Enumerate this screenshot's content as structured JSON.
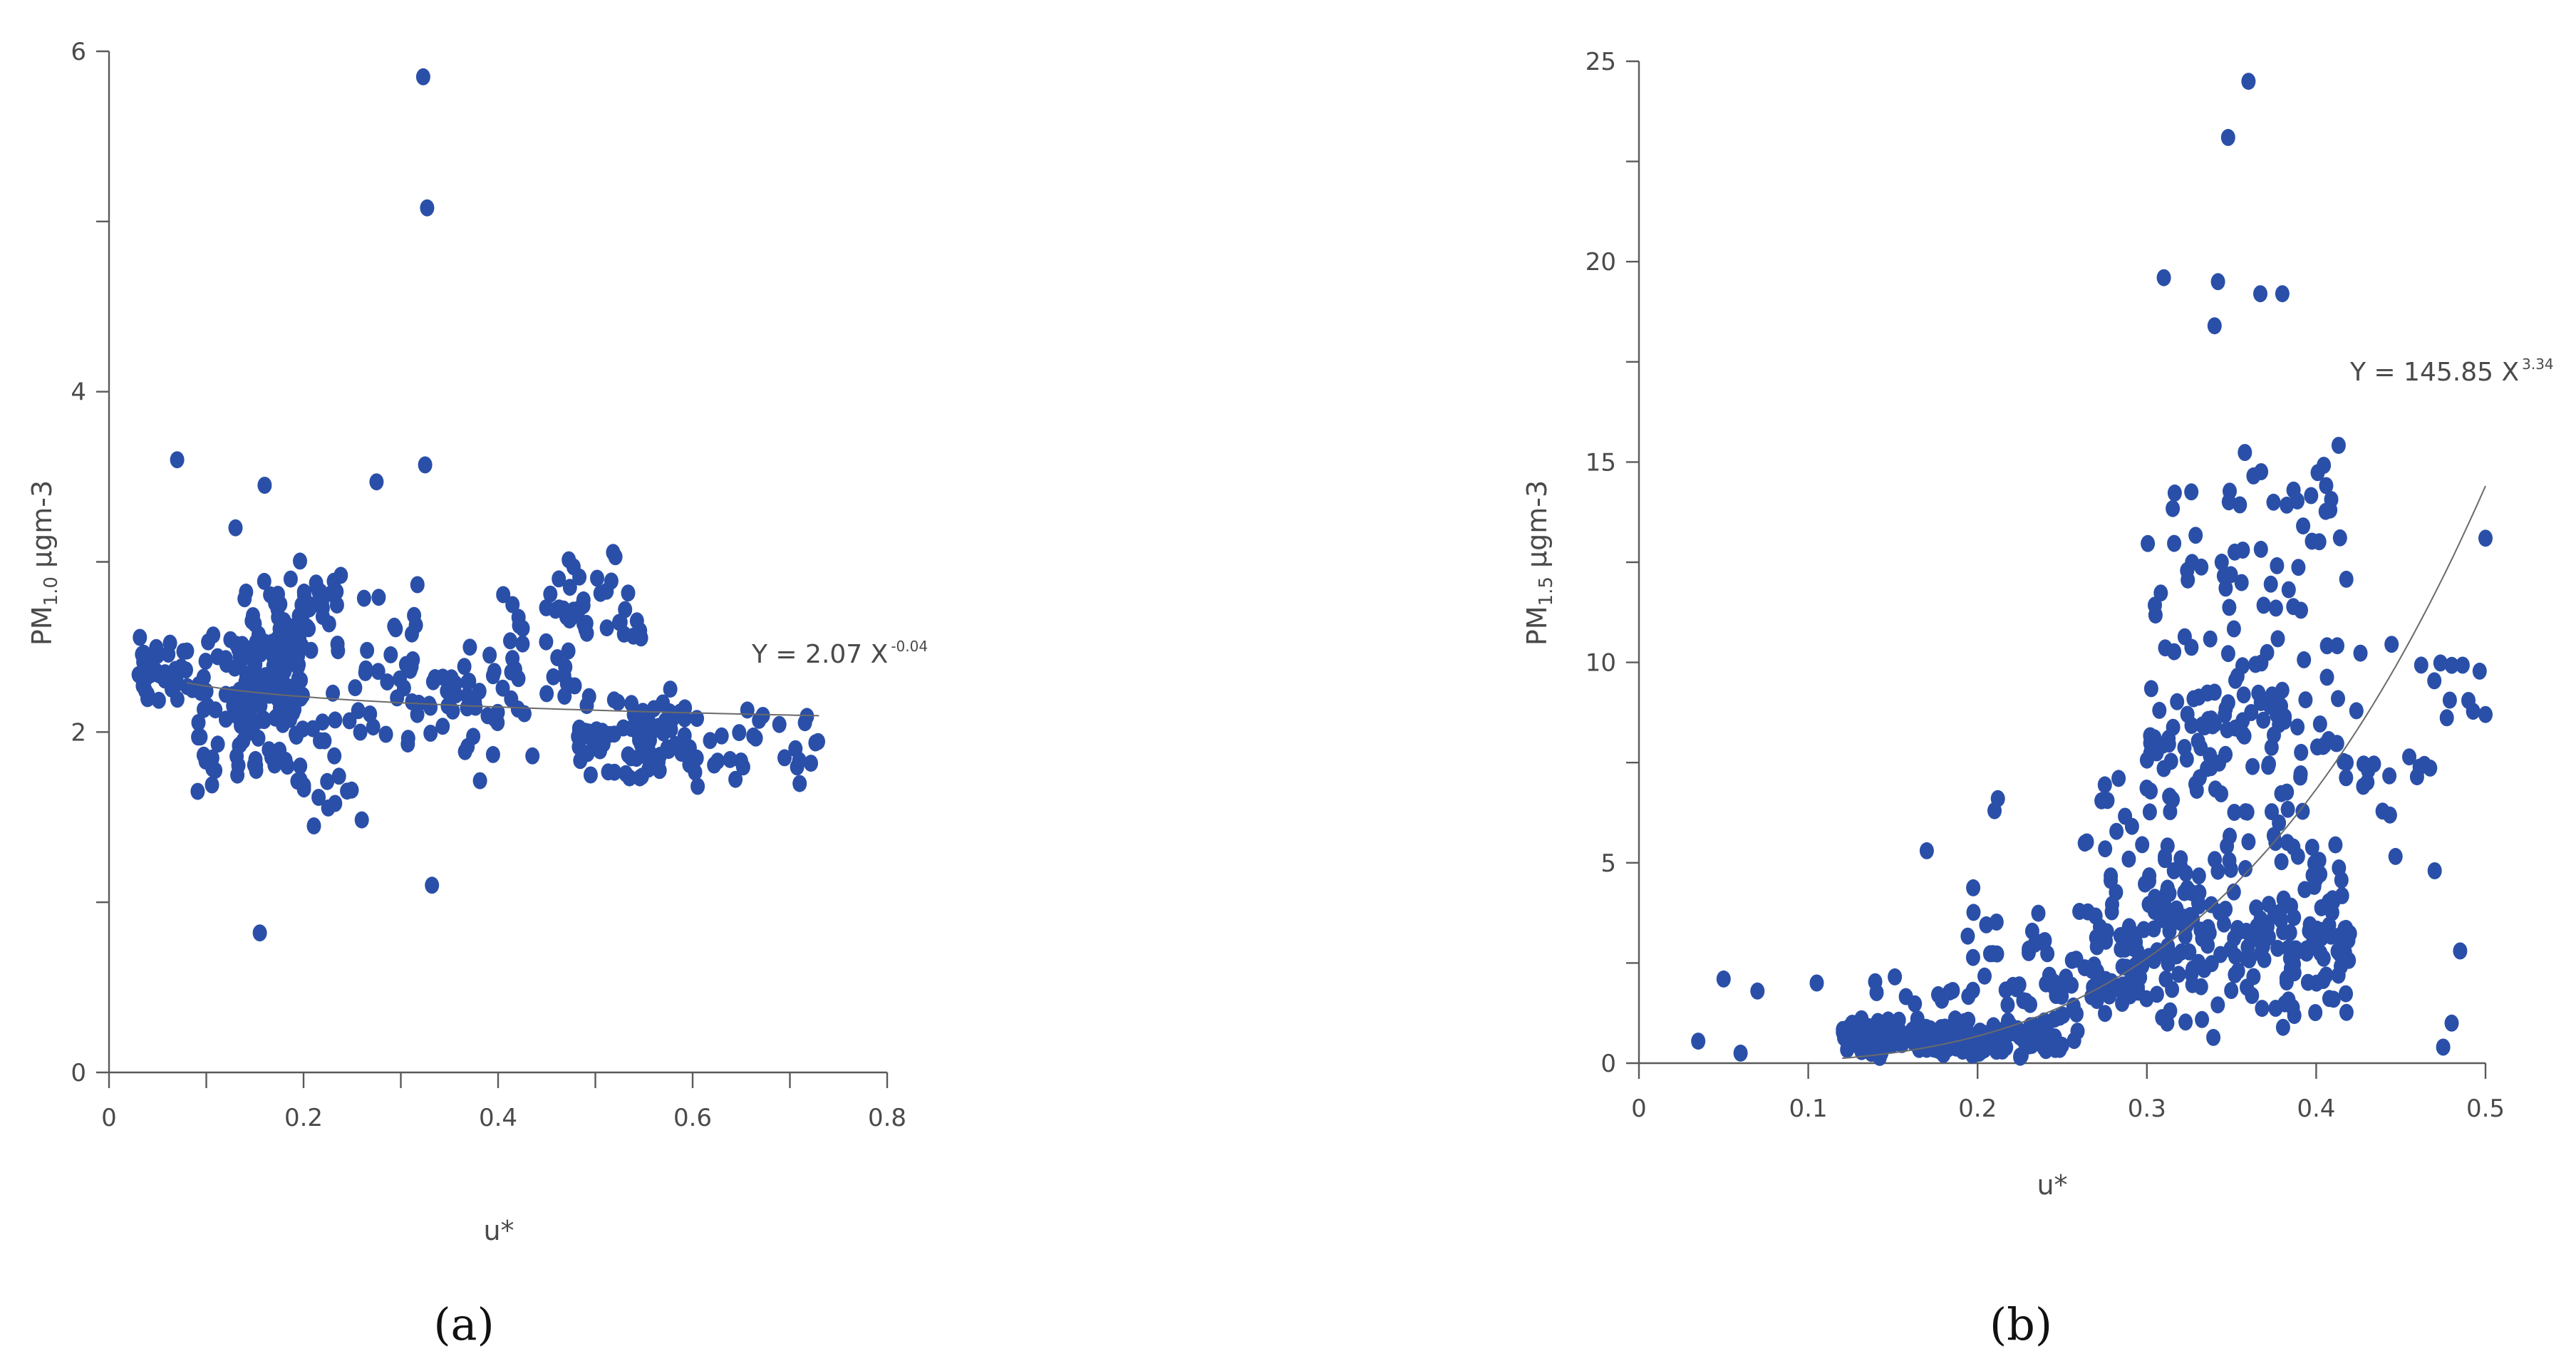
{
  "chart_data": [
    {
      "type": "scatter",
      "panel_label": "(a)",
      "xlabel": "u*",
      "ylabel": {
        "main": "PM",
        "sub": "1.0",
        "unit": " μgm-3"
      },
      "xlim": [
        0,
        0.8
      ],
      "ylim": [
        0,
        6
      ],
      "xticks": [
        0,
        0.1,
        0.2,
        0.3,
        0.4,
        0.5,
        0.6,
        0.7,
        0.8
      ],
      "xtick_labels": [
        "0",
        "",
        "0.2",
        "",
        "0.4",
        "",
        "0.6",
        "",
        "0.8"
      ],
      "yticks": [
        0,
        1,
        2,
        3,
        4,
        5,
        6
      ],
      "ytick_labels": [
        "0",
        "",
        "2",
        "",
        "4",
        "",
        "6"
      ],
      "fit": {
        "a": 2.07,
        "b": -0.04,
        "x_range": [
          0.08,
          0.73
        ],
        "label": "Y = 2.07 X",
        "label_sup": "-0.04"
      },
      "point_color": "#2a4fa8",
      "outliers": [
        [
          0.323,
          5.85
        ],
        [
          0.327,
          5.08
        ],
        [
          0.325,
          3.57
        ],
        [
          0.332,
          1.1
        ],
        [
          0.155,
          0.82
        ],
        [
          0.07,
          3.6
        ],
        [
          0.16,
          3.45
        ],
        [
          0.275,
          3.47
        ],
        [
          0.13,
          3.2
        ]
      ],
      "clusters": [
        {
          "x": [
            0.03,
            0.09
          ],
          "y": [
            2.1,
            2.6
          ],
          "n": 40
        },
        {
          "x": [
            0.09,
            0.13
          ],
          "y": [
            1.6,
            2.6
          ],
          "n": 30
        },
        {
          "x": [
            0.13,
            0.2
          ],
          "y": [
            1.6,
            2.9
          ],
          "n": 150
        },
        {
          "x": [
            0.17,
            0.24
          ],
          "y": [
            2.4,
            3.05
          ],
          "n": 40
        },
        {
          "x": [
            0.2,
            0.26
          ],
          "y": [
            1.35,
            2.4
          ],
          "n": 22
        },
        {
          "x": [
            0.26,
            0.33
          ],
          "y": [
            1.75,
            3.0
          ],
          "n": 30
        },
        {
          "x": [
            0.33,
            0.4
          ],
          "y": [
            1.7,
            2.6
          ],
          "n": 35
        },
        {
          "x": [
            0.4,
            0.48
          ],
          "y": [
            1.8,
            2.95
          ],
          "n": 30
        },
        {
          "x": [
            0.46,
            0.55
          ],
          "y": [
            2.4,
            3.1
          ],
          "n": 35
        },
        {
          "x": [
            0.48,
            0.6
          ],
          "y": [
            1.65,
            2.3
          ],
          "n": 90
        },
        {
          "x": [
            0.6,
            0.73
          ],
          "y": [
            1.6,
            2.25
          ],
          "n": 30
        }
      ]
    },
    {
      "type": "scatter",
      "panel_label": "(b)",
      "xlabel": "u*",
      "ylabel": {
        "main": "PM",
        "sub": "1.5",
        "unit": " μgm-3"
      },
      "xlim": [
        0,
        0.5
      ],
      "ylim": [
        0,
        25
      ],
      "xticks": [
        0,
        0.1,
        0.2,
        0.3,
        0.4,
        0.5
      ],
      "xtick_labels": [
        "0",
        "0.1",
        "0.2",
        "0.3",
        "0.4",
        "0.5"
      ],
      "yticks": [
        0,
        2.5,
        5,
        7.5,
        10,
        12.5,
        15,
        17.5,
        20,
        22.5,
        25
      ],
      "ytick_labels": [
        "0",
        "",
        "5",
        "",
        "10",
        "",
        "15",
        "",
        "20",
        "",
        "25"
      ],
      "fit": {
        "a": 145.85,
        "b": 3.34,
        "x_range": [
          0.12,
          0.5
        ],
        "label": "Y = 145.85 X",
        "label_sup": "3.34"
      },
      "point_color": "#2a4fa8",
      "outliers": [
        [
          0.035,
          0.55
        ],
        [
          0.05,
          2.1
        ],
        [
          0.06,
          0.25
        ],
        [
          0.07,
          1.8
        ],
        [
          0.105,
          2.0
        ],
        [
          0.17,
          5.3
        ],
        [
          0.21,
          6.3
        ],
        [
          0.212,
          6.6
        ],
        [
          0.31,
          19.6
        ],
        [
          0.34,
          18.4
        ],
        [
          0.342,
          19.5
        ],
        [
          0.348,
          23.1
        ],
        [
          0.36,
          24.5
        ],
        [
          0.367,
          19.2
        ],
        [
          0.38,
          19.2
        ],
        [
          0.5,
          8.7
        ],
        [
          0.5,
          13.1
        ],
        [
          0.47,
          4.8
        ],
        [
          0.475,
          0.4
        ],
        [
          0.48,
          1.0
        ],
        [
          0.485,
          2.8
        ]
      ],
      "clusters": [
        {
          "x": [
            0.12,
            0.25
          ],
          "y": [
            0.1,
            1.2
          ],
          "n": 220
        },
        {
          "x": [
            0.12,
            0.2
          ],
          "y": [
            1.0,
            2.3
          ],
          "n": 12
        },
        {
          "x": [
            0.19,
            0.24
          ],
          "y": [
            1.0,
            4.6
          ],
          "n": 25
        },
        {
          "x": [
            0.24,
            0.3
          ],
          "y": [
            0.3,
            4.0
          ],
          "n": 60
        },
        {
          "x": [
            0.26,
            0.32
          ],
          "y": [
            2.0,
            8.0
          ],
          "n": 40
        },
        {
          "x": [
            0.3,
            0.42
          ],
          "y": [
            0.5,
            6.0
          ],
          "n": 200
        },
        {
          "x": [
            0.3,
            0.42
          ],
          "y": [
            5.0,
            11.0
          ],
          "n": 110
        },
        {
          "x": [
            0.3,
            0.42
          ],
          "y": [
            10.0,
            16.0
          ],
          "n": 60
        },
        {
          "x": [
            0.41,
            0.47
          ],
          "y": [
            4.5,
            11.5
          ],
          "n": 20
        },
        {
          "x": [
            0.47,
            0.5
          ],
          "y": [
            7.5,
            10.5
          ],
          "n": 8
        }
      ]
    }
  ]
}
